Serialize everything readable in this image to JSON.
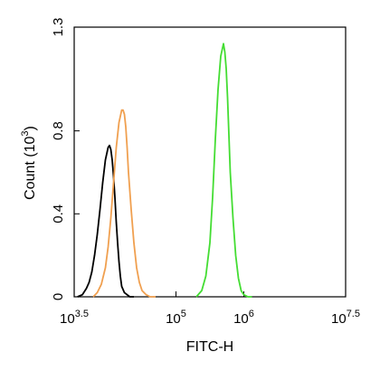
{
  "chart_data": {
    "type": "line",
    "xlabel": "FITC-H",
    "ylabel": "Count",
    "ylabel_unit_base": "10",
    "ylabel_unit_exp": "3",
    "x_scale": "log10",
    "xlim": [
      3.5,
      7.5
    ],
    "ylim": [
      0,
      1.3
    ],
    "x_ticks": [
      {
        "value": 3.5,
        "base": "10",
        "exp": "3.5"
      },
      {
        "value": 5,
        "base": "10",
        "exp": "5"
      },
      {
        "value": 6,
        "base": "10",
        "exp": "6"
      },
      {
        "value": 7.5,
        "base": "10",
        "exp": "7.5"
      }
    ],
    "y_ticks": [
      {
        "value": 0,
        "label": "0"
      },
      {
        "value": 0.4,
        "label": "0.4"
      },
      {
        "value": 0.8,
        "label": "0.8"
      },
      {
        "value": 1.3,
        "label": "1.3"
      }
    ],
    "grid": false,
    "series": [
      {
        "color": "#000000",
        "x": [
          3.55,
          3.62,
          3.68,
          3.72,
          3.76,
          3.8,
          3.84,
          3.88,
          3.92,
          3.96,
          4.0,
          4.02,
          4.04,
          4.06,
          4.08,
          4.1,
          4.12,
          4.14,
          4.16,
          4.18,
          4.2,
          4.24,
          4.28,
          4.32,
          4.38
        ],
        "y": [
          0,
          0.01,
          0.04,
          0.07,
          0.12,
          0.2,
          0.3,
          0.42,
          0.55,
          0.66,
          0.72,
          0.73,
          0.71,
          0.66,
          0.58,
          0.48,
          0.36,
          0.26,
          0.17,
          0.1,
          0.05,
          0.02,
          0.01,
          0.0,
          0
        ]
      },
      {
        "color": "#f0a050",
        "x": [
          3.78,
          3.84,
          3.9,
          3.96,
          4.0,
          4.04,
          4.08,
          4.12,
          4.16,
          4.2,
          4.22,
          4.24,
          4.26,
          4.28,
          4.3,
          4.34,
          4.38,
          4.42,
          4.46,
          4.5,
          4.56,
          4.62,
          4.7
        ],
        "y": [
          0,
          0.02,
          0.06,
          0.14,
          0.24,
          0.38,
          0.55,
          0.72,
          0.84,
          0.9,
          0.9,
          0.88,
          0.82,
          0.72,
          0.6,
          0.42,
          0.26,
          0.14,
          0.07,
          0.03,
          0.01,
          0.0,
          0
        ]
      },
      {
        "color": "#44dd33",
        "x": [
          5.3,
          5.38,
          5.44,
          5.5,
          5.54,
          5.58,
          5.62,
          5.66,
          5.7,
          5.72,
          5.74,
          5.76,
          5.78,
          5.8,
          5.84,
          5.88,
          5.92,
          5.96,
          6.0,
          6.06,
          6.12
        ],
        "y": [
          0,
          0.03,
          0.1,
          0.26,
          0.48,
          0.76,
          1.0,
          1.16,
          1.22,
          1.18,
          1.1,
          0.96,
          0.78,
          0.6,
          0.38,
          0.2,
          0.09,
          0.03,
          0.01,
          0.0,
          0
        ]
      }
    ]
  }
}
